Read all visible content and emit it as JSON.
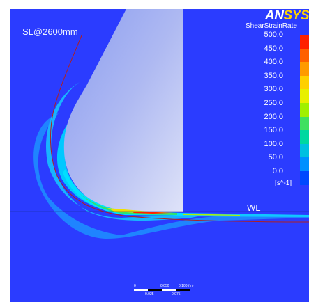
{
  "brand": {
    "part1": "AN",
    "part2": "SYS"
  },
  "labels": {
    "streamline": "SL@2600mm",
    "waterline": "WL"
  },
  "legend": {
    "title": "ShearStrainRate",
    "unit": "[s^-1]",
    "ticks": [
      "500.0",
      "450.0",
      "400.0",
      "350.0",
      "300.0",
      "250.0",
      "200.0",
      "150.0",
      "100.0",
      "50.0",
      "0.0"
    ],
    "colors": [
      "#ff2000",
      "#ff6000",
      "#ff9a00",
      "#ffd000",
      "#e8f000",
      "#a0f000",
      "#40e060",
      "#00d8a0",
      "#00c0e0",
      "#0090ff",
      "#0048ff"
    ]
  },
  "scale_bar": {
    "top_labels": [
      "0",
      "0.050",
      "0.100 (m)"
    ],
    "bottom_labels": [
      "0.025",
      "0.075"
    ]
  },
  "colors": {
    "background": "#2b3cff",
    "wedge": "#bcc6f4",
    "flow_light": "#28a8ff",
    "flow_cyan": "#00c8ff"
  }
}
